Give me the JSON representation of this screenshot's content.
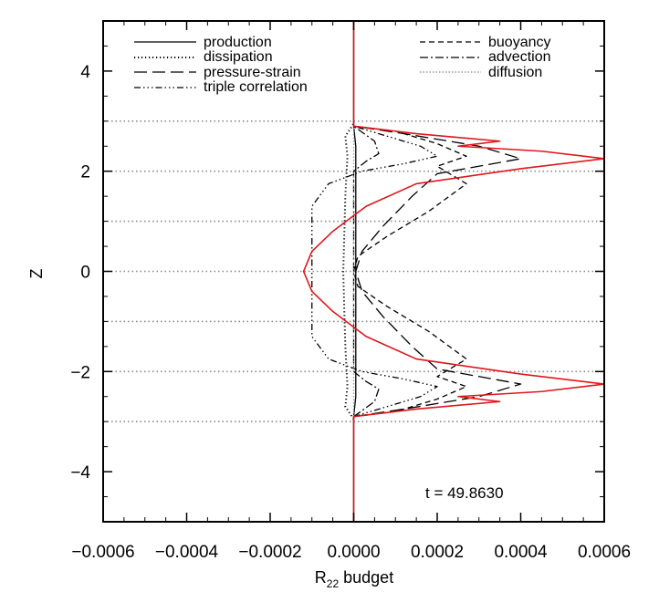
{
  "chart_data": {
    "type": "line",
    "xlabel_main": "R",
    "xlabel_sub": "22",
    "xlabel_rest": " budget",
    "ylabel": "Z",
    "xlim": [
      -0.0006,
      0.0006
    ],
    "ylim": [
      -5,
      5
    ],
    "x_ticks": [
      "-0.0006",
      "-0.0004",
      "-0.0002",
      "0.0000",
      "0.0002",
      "0.0004",
      "0.0006"
    ],
    "x_tick_values": [
      -0.0006,
      -0.0004,
      -0.0002,
      0.0,
      0.0002,
      0.0004,
      0.0006
    ],
    "y_ticks": [
      "-4",
      "-2",
      "0",
      "2",
      "4"
    ],
    "y_tick_values": [
      -4,
      -2,
      0,
      2,
      4
    ],
    "reference_levels": [
      -3,
      -2,
      -1,
      0,
      1,
      2,
      3
    ],
    "annotation": "t  =  49.8630",
    "legend_left": [
      "production",
      "dissipation",
      "pressure-strain",
      "triple correlation"
    ],
    "legend_right": [
      "buoyancy",
      "advection",
      "diffusion"
    ],
    "series": [
      {
        "name": "production",
        "color": "#000000",
        "dash": "solid",
        "points": [
          [
            0,
            -5
          ],
          [
            0,
            -2.9
          ],
          [
            5e-06,
            -2.5
          ],
          [
            5e-06,
            0
          ],
          [
            5e-06,
            2.5
          ],
          [
            0,
            2.9
          ],
          [
            0,
            5
          ]
        ]
      },
      {
        "name": "dissipation",
        "color": "#000000",
        "dash": "dotted",
        "points": [
          [
            0,
            -2.95
          ],
          [
            -2e-05,
            -2.7
          ],
          [
            -1.5e-05,
            -2.3
          ],
          [
            -2e-05,
            -1.5
          ],
          [
            -2.5e-05,
            0
          ],
          [
            -2e-05,
            1.5
          ],
          [
            -1.5e-05,
            2.3
          ],
          [
            -2e-05,
            2.7
          ],
          [
            0,
            2.95
          ]
        ]
      },
      {
        "name": "pressure-strain",
        "color": "#000000",
        "dash": "longdash",
        "points": [
          [
            0,
            -2.9
          ],
          [
            0.00012,
            -2.75
          ],
          [
            0.0003,
            -2.5
          ],
          [
            0.0004,
            -2.25
          ],
          [
            0.0003,
            -2.1
          ],
          [
            0.0002,
            -1.95
          ],
          [
            0.00014,
            -1.5
          ],
          [
            7e-05,
            -0.9
          ],
          [
            2e-05,
            -0.4
          ],
          [
            5e-06,
            0
          ],
          [
            2e-05,
            0.4
          ],
          [
            7e-05,
            0.9
          ],
          [
            0.00014,
            1.5
          ],
          [
            0.0002,
            1.95
          ],
          [
            0.0003,
            2.1
          ],
          [
            0.0004,
            2.25
          ],
          [
            0.0003,
            2.5
          ],
          [
            0.00012,
            2.75
          ],
          [
            0,
            2.9
          ]
        ]
      },
      {
        "name": "triple correlation",
        "color": "#000000",
        "dash": "dashdotdot",
        "points": [
          [
            0,
            -2.9
          ],
          [
            8e-05,
            -2.7
          ],
          [
            0.00016,
            -2.5
          ],
          [
            0.0002,
            -2.3
          ],
          [
            0.00012,
            -2.15
          ],
          [
            2e-05,
            -2.0
          ],
          [
            -6e-05,
            -1.75
          ],
          [
            -0.0001,
            -1.3
          ],
          [
            -0.0001,
            -0.6
          ],
          [
            -0.0001,
            0
          ],
          [
            -0.0001,
            0.6
          ],
          [
            -0.0001,
            1.3
          ],
          [
            -6e-05,
            1.75
          ],
          [
            2e-05,
            2.0
          ],
          [
            0.00012,
            2.15
          ],
          [
            0.0002,
            2.3
          ],
          [
            0.00016,
            2.5
          ],
          [
            8e-05,
            2.7
          ],
          [
            0,
            2.9
          ]
        ]
      },
      {
        "name": "buoyancy",
        "color": "#000000",
        "dash": "dashed",
        "points": [
          [
            0,
            -2.9
          ],
          [
            0.0001,
            -2.8
          ],
          [
            0.0002,
            -2.55
          ],
          [
            0.00027,
            -2.3
          ],
          [
            0.0002,
            -2.1
          ],
          [
            0.00027,
            -1.75
          ],
          [
            0.00018,
            -1.2
          ],
          [
            8e-05,
            -0.7
          ],
          [
            1e-05,
            -0.3
          ],
          [
            0,
            0
          ],
          [
            1e-05,
            0.3
          ],
          [
            8e-05,
            0.7
          ],
          [
            0.00018,
            1.2
          ],
          [
            0.00027,
            1.75
          ],
          [
            0.0002,
            2.1
          ],
          [
            0.00027,
            2.3
          ],
          [
            0.0002,
            2.55
          ],
          [
            0.0001,
            2.8
          ],
          [
            0,
            2.9
          ]
        ]
      },
      {
        "name": "advection",
        "color": "#000000",
        "dash": "dashdot",
        "points": [
          [
            0,
            -2.9
          ],
          [
            5e-05,
            -2.6
          ],
          [
            6e-05,
            -2.35
          ],
          [
            3e-05,
            -2.2
          ],
          [
            0,
            -2.0
          ],
          [
            0,
            0
          ],
          [
            0,
            2.0
          ],
          [
            3e-05,
            2.2
          ],
          [
            6e-05,
            2.35
          ],
          [
            5e-05,
            2.6
          ],
          [
            0,
            2.9
          ]
        ]
      },
      {
        "name": "diffusion",
        "color": "#999999",
        "dash": "fine",
        "points": [
          [
            0,
            -5
          ],
          [
            0,
            5
          ]
        ]
      },
      {
        "name": "",
        "color": "#e0161b",
        "dash": "solid",
        "points": [
          [
            0,
            -5
          ],
          [
            0,
            -2.9
          ],
          [
            0.00015,
            -2.75
          ],
          [
            0.00035,
            -2.6
          ],
          [
            0.00025,
            -2.5
          ],
          [
            0.00045,
            -2.4
          ],
          [
            0.0006,
            -2.25
          ],
          [
            0.0004,
            -2.05
          ],
          [
            0.00015,
            -1.75
          ],
          [
            3e-05,
            -1.3
          ],
          [
            -5e-05,
            -0.8
          ],
          [
            -0.0001,
            -0.4
          ],
          [
            -0.00012,
            0
          ],
          [
            -0.0001,
            0.4
          ],
          [
            -5e-05,
            0.8
          ],
          [
            3e-05,
            1.3
          ],
          [
            0.00015,
            1.75
          ],
          [
            0.0004,
            2.05
          ],
          [
            0.0006,
            2.25
          ],
          [
            0.00045,
            2.4
          ],
          [
            0.00025,
            2.5
          ],
          [
            0.00035,
            2.6
          ],
          [
            0.00015,
            2.75
          ],
          [
            0,
            2.9
          ],
          [
            0,
            5
          ]
        ]
      }
    ]
  }
}
